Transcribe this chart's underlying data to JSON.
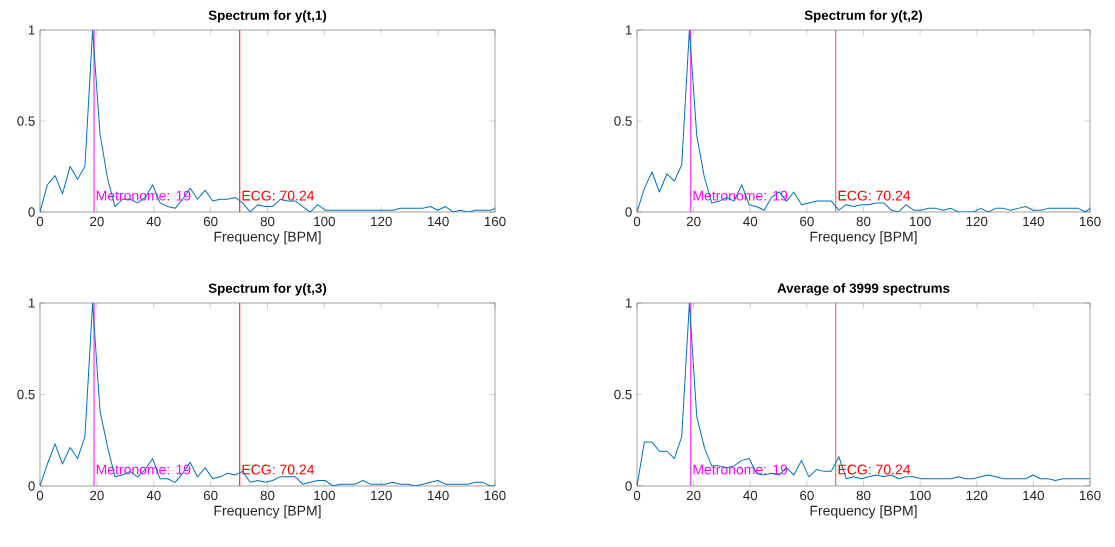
{
  "chart_data": [
    {
      "type": "line",
      "title": "Spectrum for y(t,1)",
      "xlabel": "Frequency [BPM]",
      "xlim": [
        0,
        160
      ],
      "xticks": [
        0,
        20,
        40,
        60,
        80,
        100,
        120,
        140,
        160
      ],
      "ylim": [
        0,
        1
      ],
      "yticks": [
        0,
        0.5,
        1
      ],
      "x": [
        0,
        2.6,
        5.3,
        7.9,
        10.6,
        13.2,
        15.8,
        18.5,
        21.1,
        23.8,
        26.4,
        29,
        31.7,
        34.3,
        37,
        39.6,
        42.2,
        44.9,
        47.5,
        50.2,
        52.8,
        55.4,
        58.1,
        60.7,
        63.4,
        66,
        68.6,
        71.3,
        73.9,
        76.6,
        79.2,
        81.8,
        84.5,
        87.1,
        89.8,
        92.4,
        95,
        97.7,
        100.3,
        103,
        105.6,
        108.2,
        110.9,
        113.5,
        116.2,
        118.8,
        121.4,
        124.1,
        126.7,
        129.4,
        132,
        134.6,
        137.3,
        139.9,
        142.6,
        145.2,
        147.8,
        150.5,
        153.1,
        155.8,
        158.4,
        160
      ],
      "series": [
        {
          "color": "#0072bd",
          "values": [
            0,
            0.15,
            0.2,
            0.1,
            0.25,
            0.18,
            0.25,
            1,
            0.43,
            0.18,
            0.03,
            0.07,
            0.07,
            0.05,
            0.08,
            0.15,
            0.05,
            0.03,
            0.02,
            0.07,
            0.13,
            0.07,
            0.12,
            0.06,
            0.07,
            0.07,
            0.08,
            0.05,
            0,
            0.04,
            0.03,
            0.03,
            0.07,
            0.06,
            0.06,
            0.03,
            0,
            0.04,
            0.01,
            0.01,
            0.01,
            0.01,
            0.01,
            0.01,
            0.01,
            0.01,
            0.01,
            0.01,
            0.02,
            0.02,
            0.02,
            0.02,
            0.03,
            0.01,
            0.03,
            0,
            0.01,
            0,
            0.01,
            0.01,
            0.01,
            0.02
          ]
        }
      ],
      "ref_lines": [
        {
          "axis": "x",
          "value": 19,
          "label": "Metronome: 19",
          "color": "#ff00ff"
        },
        {
          "axis": "x",
          "value": 70.24,
          "label": "ECG: 70.24",
          "color": "#ff0000"
        }
      ]
    },
    {
      "type": "line",
      "title": "Spectrum for y(t,2)",
      "xlabel": "Frequency [BPM]",
      "xlim": [
        0,
        160
      ],
      "xticks": [
        0,
        20,
        40,
        60,
        80,
        100,
        120,
        140,
        160
      ],
      "ylim": [
        0,
        1
      ],
      "yticks": [
        0,
        0.5,
        1
      ],
      "x": [
        0,
        2.6,
        5.3,
        7.9,
        10.6,
        13.2,
        15.8,
        18.5,
        21.1,
        23.8,
        26.4,
        29,
        31.7,
        34.3,
        37,
        39.6,
        42.2,
        44.9,
        47.5,
        50.2,
        52.8,
        55.4,
        58.1,
        60.7,
        63.4,
        66,
        68.6,
        71.3,
        73.9,
        76.6,
        79.2,
        81.8,
        84.5,
        87.1,
        89.8,
        92.4,
        95,
        97.7,
        100.3,
        103,
        105.6,
        108.2,
        110.9,
        113.5,
        116.2,
        118.8,
        121.4,
        124.1,
        126.7,
        129.4,
        132,
        134.6,
        137.3,
        139.9,
        142.6,
        145.2,
        147.8,
        150.5,
        153.1,
        155.8,
        158.4,
        160
      ],
      "series": [
        {
          "color": "#0072bd",
          "values": [
            0,
            0.13,
            0.22,
            0.11,
            0.21,
            0.17,
            0.26,
            1,
            0.42,
            0.19,
            0.05,
            0.06,
            0.08,
            0.06,
            0.15,
            0.04,
            0.03,
            0.01,
            0.08,
            0.11,
            0.06,
            0.11,
            0.04,
            0.05,
            0.06,
            0.06,
            0.06,
            0.01,
            0.04,
            0.03,
            0.04,
            0.04,
            0.05,
            0.05,
            0.01,
            0,
            0.04,
            0.01,
            0.01,
            0.02,
            0.02,
            0.01,
            0.02,
            0,
            0,
            0,
            0.02,
            0,
            0.02,
            0.02,
            0.01,
            0.02,
            0.03,
            0.01,
            0.01,
            0.02,
            0.02,
            0.02,
            0.02,
            0.02,
            0,
            0.02
          ]
        }
      ],
      "ref_lines": [
        {
          "axis": "x",
          "value": 19,
          "label": "Metronome: 19",
          "color": "#ff00ff"
        },
        {
          "axis": "x",
          "value": 70.24,
          "label": "ECG: 70.24",
          "color": "#ff0000"
        }
      ]
    },
    {
      "type": "line",
      "title": "Spectrum for y(t,3)",
      "xlabel": "Frequency [BPM]",
      "xlim": [
        0,
        160
      ],
      "xticks": [
        0,
        20,
        40,
        60,
        80,
        100,
        120,
        140,
        160
      ],
      "ylim": [
        0,
        1
      ],
      "yticks": [
        0,
        0.5,
        1
      ],
      "x": [
        0,
        2.6,
        5.3,
        7.9,
        10.6,
        13.2,
        15.8,
        18.5,
        21.1,
        23.8,
        26.4,
        29,
        31.7,
        34.3,
        37,
        39.6,
        42.2,
        44.9,
        47.5,
        50.2,
        52.8,
        55.4,
        58.1,
        60.7,
        63.4,
        66,
        68.6,
        71.3,
        73.9,
        76.6,
        79.2,
        81.8,
        84.5,
        87.1,
        89.8,
        92.4,
        95,
        97.7,
        100.3,
        103,
        105.6,
        108.2,
        110.9,
        113.5,
        116.2,
        118.8,
        121.4,
        124.1,
        126.7,
        129.4,
        132,
        134.6,
        137.3,
        139.9,
        142.6,
        145.2,
        147.8,
        150.5,
        153.1,
        155.8,
        158.4,
        160
      ],
      "series": [
        {
          "color": "#0072bd",
          "values": [
            0,
            0.12,
            0.23,
            0.12,
            0.21,
            0.15,
            0.27,
            1,
            0.41,
            0.21,
            0.05,
            0.06,
            0.08,
            0.05,
            0.09,
            0.15,
            0.04,
            0.04,
            0.02,
            0.07,
            0.13,
            0.05,
            0.1,
            0.04,
            0.05,
            0.07,
            0.06,
            0.08,
            0.02,
            0.03,
            0.02,
            0.03,
            0.05,
            0.05,
            0.05,
            0.01,
            0.02,
            0.03,
            0.03,
            0,
            0.01,
            0.01,
            0.01,
            0.03,
            0.01,
            0.01,
            0.01,
            0.02,
            0.01,
            0.01,
            0,
            0.01,
            0.02,
            0.03,
            0.01,
            0.01,
            0.01,
            0.01,
            0.02,
            0.02,
            0,
            0
          ]
        }
      ],
      "ref_lines": [
        {
          "axis": "x",
          "value": 19,
          "label": "Metronome: 19",
          "color": "#ff00ff"
        },
        {
          "axis": "x",
          "value": 70.24,
          "label": "ECG: 70.24",
          "color": "#ff0000"
        }
      ]
    },
    {
      "type": "line",
      "title": "Average of 3999 spectrums",
      "xlabel": "Frequency [BPM]",
      "xlim": [
        0,
        160
      ],
      "xticks": [
        0,
        20,
        40,
        60,
        80,
        100,
        120,
        140,
        160
      ],
      "ylim": [
        0,
        1
      ],
      "yticks": [
        0,
        0.5,
        1
      ],
      "x": [
        0,
        2.6,
        5.3,
        7.9,
        10.6,
        13.2,
        15.8,
        18.5,
        21.1,
        23.8,
        26.4,
        29,
        31.7,
        34.3,
        37,
        39.6,
        42.2,
        44.9,
        47.5,
        50.2,
        52.8,
        55.4,
        58.1,
        60.7,
        63.4,
        66,
        68.6,
        71.3,
        73.9,
        76.6,
        79.2,
        81.8,
        84.5,
        87.1,
        89.8,
        92.4,
        95,
        97.7,
        100.3,
        103,
        105.6,
        108.2,
        110.9,
        113.5,
        116.2,
        118.8,
        121.4,
        124.1,
        126.7,
        129.4,
        132,
        134.6,
        137.3,
        139.9,
        142.6,
        145.2,
        147.8,
        150.5,
        153.1,
        155.8,
        158.4,
        160
      ],
      "series": [
        {
          "color": "#0072bd",
          "values": [
            0,
            0.24,
            0.24,
            0.19,
            0.19,
            0.15,
            0.27,
            1,
            0.38,
            0.21,
            0.11,
            0.11,
            0.1,
            0.11,
            0.14,
            0.15,
            0.07,
            0.06,
            0.07,
            0.06,
            0.1,
            0.06,
            0.14,
            0.05,
            0.09,
            0.08,
            0.08,
            0.16,
            0.04,
            0.05,
            0.04,
            0.05,
            0.06,
            0.05,
            0.06,
            0.04,
            0.05,
            0.05,
            0.04,
            0.04,
            0.04,
            0.04,
            0.04,
            0.05,
            0.04,
            0.04,
            0.05,
            0.06,
            0.05,
            0.04,
            0.04,
            0.04,
            0.04,
            0.06,
            0.04,
            0.04,
            0.03,
            0.04,
            0.04,
            0.04,
            0.04,
            0.04
          ]
        }
      ],
      "ref_lines": [
        {
          "axis": "x",
          "value": 19,
          "label": "Metronome: 19",
          "color": "#ff00ff"
        },
        {
          "axis": "x",
          "value": 70.24,
          "label": "ECG: 70.24",
          "color": "#ff0000"
        }
      ]
    }
  ]
}
